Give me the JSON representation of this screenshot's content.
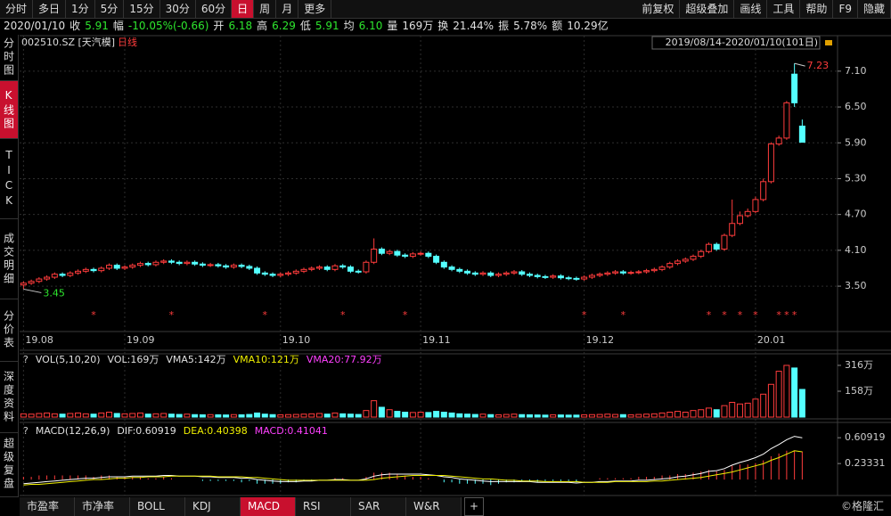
{
  "toolbar": {
    "left": [
      "分时",
      "多日",
      "1分",
      "5分",
      "15分",
      "30分",
      "60分",
      "日",
      "周",
      "月",
      "更多"
    ],
    "active": 7,
    "right": [
      "前复权",
      "超级叠加",
      "画线",
      "工具",
      "帮助",
      "F9",
      "隐藏"
    ]
  },
  "quote": [
    {
      "text": "2020/01/10",
      "color": "#e0e0e0"
    },
    {
      "text": "收",
      "color": "#e0e0e0"
    },
    {
      "text": "5.91",
      "color": "#2ee62e"
    },
    {
      "text": "幅",
      "color": "#e0e0e0"
    },
    {
      "text": "-10.05%(-0.66)",
      "color": "#2ee62e"
    },
    {
      "text": "开",
      "color": "#e0e0e0"
    },
    {
      "text": "6.18",
      "color": "#2ee62e"
    },
    {
      "text": "高",
      "color": "#e0e0e0"
    },
    {
      "text": "6.29",
      "color": "#2ee62e"
    },
    {
      "text": "低",
      "color": "#e0e0e0"
    },
    {
      "text": "5.91",
      "color": "#2ee62e"
    },
    {
      "text": "均",
      "color": "#e0e0e0"
    },
    {
      "text": "6.10",
      "color": "#2ee62e"
    },
    {
      "text": "量",
      "color": "#e0e0e0"
    },
    {
      "text": "169万",
      "color": "#e0e0e0"
    },
    {
      "text": "换",
      "color": "#e0e0e0"
    },
    {
      "text": "21.44%",
      "color": "#e0e0e0"
    },
    {
      "text": "振",
      "color": "#e0e0e0"
    },
    {
      "text": "5.78%",
      "color": "#e0e0e0"
    },
    {
      "text": "额",
      "color": "#e0e0e0"
    },
    {
      "text": "10.29亿",
      "color": "#e0e0e0"
    }
  ],
  "sidebar": {
    "items": [
      "分时图",
      "K线图",
      "TICK",
      "成交明细",
      "分价表",
      "深度资料",
      "超级复盘"
    ],
    "active": 1
  },
  "bottom_tabs": {
    "items": [
      "市盈率",
      "市净率",
      "BOLL",
      "KDJ",
      "MACD",
      "RSI",
      "SAR",
      "W&R"
    ],
    "active": 4
  },
  "watermark": "©格隆汇",
  "chart_data": {
    "type": "candlestick",
    "title": "002510.SZ [天汽模]",
    "subtitle": "日线",
    "range_label": "2019/08/14-2020/01/10(101日)",
    "up_color": "#ff3c3c",
    "down_color": "#54ffff",
    "open": [
      3.52,
      3.55,
      3.58,
      3.62,
      3.65,
      3.7,
      3.68,
      3.72,
      3.75,
      3.78,
      3.76,
      3.8,
      3.85,
      3.8,
      3.82,
      3.85,
      3.88,
      3.86,
      3.9,
      3.92,
      3.9,
      3.88,
      3.9,
      3.87,
      3.85,
      3.86,
      3.84,
      3.82,
      3.85,
      3.83,
      3.8,
      3.72,
      3.7,
      3.68,
      3.7,
      3.72,
      3.75,
      3.78,
      3.8,
      3.82,
      3.78,
      3.84,
      3.82,
      3.75,
      3.74,
      3.9,
      4.12,
      4.05,
      4.08,
      4.02,
      4.0,
      4.04,
      4.05,
      4.0,
      3.9,
      3.82,
      3.78,
      3.75,
      3.72,
      3.7,
      3.72,
      3.68,
      3.7,
      3.72,
      3.74,
      3.7,
      3.68,
      3.66,
      3.65,
      3.67,
      3.64,
      3.63,
      3.62,
      3.65,
      3.68,
      3.7,
      3.72,
      3.74,
      3.72,
      3.73,
      3.74,
      3.76,
      3.78,
      3.82,
      3.88,
      3.92,
      3.95,
      4.0,
      4.08,
      4.2,
      4.12,
      4.35,
      4.55,
      4.68,
      4.75,
      4.95,
      5.25,
      5.88,
      5.98,
      7.05,
      6.18
    ],
    "high": [
      3.58,
      3.61,
      3.65,
      3.68,
      3.73,
      3.73,
      3.75,
      3.78,
      3.81,
      3.81,
      3.83,
      3.88,
      3.88,
      3.85,
      3.88,
      3.91,
      3.91,
      3.93,
      3.95,
      3.95,
      3.93,
      3.93,
      3.93,
      3.9,
      3.89,
      3.89,
      3.87,
      3.88,
      3.88,
      3.86,
      3.83,
      3.75,
      3.73,
      3.73,
      3.75,
      3.78,
      3.81,
      3.83,
      3.85,
      3.85,
      3.87,
      3.87,
      3.85,
      3.78,
      3.93,
      4.3,
      4.15,
      4.11,
      4.11,
      4.05,
      4.07,
      4.08,
      4.08,
      4.03,
      3.93,
      3.85,
      3.81,
      3.78,
      3.75,
      3.75,
      3.75,
      3.73,
      3.75,
      3.77,
      3.77,
      3.73,
      3.71,
      3.69,
      3.7,
      3.7,
      3.67,
      3.66,
      3.68,
      3.71,
      3.73,
      3.75,
      3.77,
      3.77,
      3.76,
      3.77,
      3.79,
      3.81,
      3.85,
      3.91,
      3.95,
      3.98,
      4.03,
      4.11,
      4.23,
      4.23,
      4.38,
      4.95,
      4.75,
      4.8,
      5.0,
      5.3,
      5.91,
      6.02,
      6.6,
      7.23,
      6.29
    ],
    "low": [
      3.45,
      3.52,
      3.55,
      3.59,
      3.62,
      3.65,
      3.65,
      3.69,
      3.72,
      3.73,
      3.73,
      3.77,
      3.77,
      3.77,
      3.79,
      3.82,
      3.83,
      3.83,
      3.87,
      3.87,
      3.85,
      3.85,
      3.84,
      3.82,
      3.82,
      3.81,
      3.79,
      3.79,
      3.8,
      3.77,
      3.69,
      3.67,
      3.65,
      3.65,
      3.67,
      3.69,
      3.72,
      3.75,
      3.77,
      3.75,
      3.75,
      3.79,
      3.72,
      3.71,
      3.71,
      3.87,
      4.02,
      4.02,
      3.99,
      3.97,
      3.97,
      4.01,
      3.97,
      3.87,
      3.79,
      3.75,
      3.72,
      3.69,
      3.67,
      3.67,
      3.65,
      3.65,
      3.67,
      3.69,
      3.67,
      3.65,
      3.63,
      3.62,
      3.62,
      3.61,
      3.6,
      3.59,
      3.59,
      3.62,
      3.65,
      3.67,
      3.69,
      3.69,
      3.69,
      3.7,
      3.71,
      3.73,
      3.75,
      3.79,
      3.85,
      3.89,
      3.92,
      3.97,
      4.05,
      4.09,
      4.09,
      4.32,
      4.52,
      4.65,
      4.72,
      4.92,
      5.22,
      5.85,
      5.95,
      6.5,
      5.91
    ],
    "close": [
      3.55,
      3.58,
      3.62,
      3.65,
      3.7,
      3.68,
      3.72,
      3.75,
      3.78,
      3.76,
      3.8,
      3.85,
      3.8,
      3.82,
      3.85,
      3.88,
      3.86,
      3.9,
      3.92,
      3.9,
      3.88,
      3.9,
      3.87,
      3.85,
      3.86,
      3.84,
      3.82,
      3.85,
      3.83,
      3.8,
      3.72,
      3.7,
      3.68,
      3.7,
      3.72,
      3.75,
      3.78,
      3.8,
      3.82,
      3.78,
      3.84,
      3.82,
      3.75,
      3.74,
      3.9,
      4.12,
      4.05,
      4.08,
      4.02,
      4.0,
      4.04,
      4.05,
      4.0,
      3.9,
      3.82,
      3.78,
      3.75,
      3.72,
      3.7,
      3.72,
      3.68,
      3.7,
      3.72,
      3.74,
      3.7,
      3.68,
      3.66,
      3.65,
      3.67,
      3.64,
      3.63,
      3.62,
      3.65,
      3.68,
      3.7,
      3.72,
      3.74,
      3.72,
      3.73,
      3.74,
      3.76,
      3.78,
      3.82,
      3.88,
      3.92,
      3.95,
      4.0,
      4.08,
      4.2,
      4.12,
      4.35,
      4.55,
      4.68,
      4.75,
      4.95,
      5.25,
      5.88,
      5.98,
      6.57,
      6.57,
      5.91
    ],
    "ylim": [
      2.77,
      7.62
    ],
    "yticks": [
      {
        "value": 3.5,
        "label": "3.50"
      },
      {
        "value": 4.1,
        "label": "4.10"
      },
      {
        "value": 4.7,
        "label": "4.70"
      },
      {
        "value": 5.3,
        "label": "5.30"
      },
      {
        "value": 5.9,
        "label": "5.90"
      },
      {
        "value": 6.5,
        "label": "6.50"
      },
      {
        "value": 7.1,
        "label": "7.10"
      }
    ],
    "xticks": [
      {
        "value": 0,
        "label": "19.08"
      },
      {
        "value": 13,
        "label": "19.09"
      },
      {
        "value": 33,
        "label": "19.10"
      },
      {
        "value": 51,
        "label": "19.11"
      },
      {
        "value": 72,
        "label": "19.12"
      },
      {
        "value": 94,
        "label": "20.01"
      }
    ],
    "high_mark": 7.23,
    "low_mark": 3.45,
    "signal_symbol": "*",
    "signals": [
      9,
      19,
      31,
      41,
      49,
      72,
      77,
      88,
      90,
      92,
      94,
      97,
      98,
      99
    ],
    "volume": {
      "legend": [
        {
          "text": "?",
          "color": "#ccc"
        },
        {
          "text": "VOL(5,10,20)",
          "color": "#e0e0e0"
        },
        {
          "text": "VOL:169万",
          "color": "#e0e0e0"
        },
        {
          "text": "VMA5:142万",
          "color": "#e0e0e0"
        },
        {
          "text": "VMA10:121万",
          "color": "#f0f000"
        },
        {
          "text": "VMA20:77.92万",
          "color": "#ff40ff"
        }
      ],
      "values": [
        20,
        18,
        22,
        25,
        20,
        18,
        22,
        25,
        20,
        18,
        25,
        30,
        22,
        20,
        22,
        25,
        18,
        20,
        22,
        18,
        16,
        18,
        15,
        14,
        15,
        14,
        13,
        15,
        14,
        16,
        25,
        18,
        15,
        14,
        15,
        16,
        18,
        20,
        22,
        18,
        25,
        20,
        18,
        16,
        40,
        100,
        60,
        45,
        35,
        30,
        28,
        30,
        28,
        35,
        30,
        25,
        20,
        18,
        16,
        18,
        15,
        14,
        16,
        18,
        15,
        14,
        13,
        12,
        14,
        13,
        12,
        12,
        14,
        15,
        16,
        18,
        16,
        15,
        14,
        16,
        18,
        20,
        25,
        30,
        35,
        30,
        40,
        45,
        55,
        45,
        70,
        90,
        80,
        85,
        110,
        140,
        200,
        280,
        316,
        300,
        169
      ],
      "ylim": [
        0,
        354
      ],
      "yticks": [
        {
          "value": 158,
          "label": "158万"
        },
        {
          "value": 316,
          "label": "316万"
        }
      ]
    },
    "macd": {
      "legend": [
        {
          "text": "?",
          "color": "#ccc"
        },
        {
          "text": "MACD(12,26,9)",
          "color": "#e0e0e0"
        },
        {
          "text": "DIF:0.60919",
          "color": "#e0e0e0"
        },
        {
          "text": "DEA:0.40398",
          "color": "#f0f000"
        },
        {
          "text": "MACD:0.41041",
          "color": "#ff40ff"
        }
      ],
      "dif": [
        -0.06,
        -0.05,
        -0.04,
        -0.03,
        -0.02,
        -0.01,
        0.0,
        0.01,
        0.02,
        0.02,
        0.03,
        0.04,
        0.04,
        0.04,
        0.05,
        0.05,
        0.05,
        0.05,
        0.06,
        0.06,
        0.05,
        0.05,
        0.05,
        0.04,
        0.04,
        0.03,
        0.03,
        0.03,
        0.02,
        0.02,
        0.0,
        -0.01,
        -0.02,
        -0.03,
        -0.03,
        -0.03,
        -0.02,
        -0.02,
        -0.01,
        -0.01,
        0.0,
        0.0,
        -0.01,
        -0.01,
        0.01,
        0.05,
        0.07,
        0.08,
        0.08,
        0.08,
        0.08,
        0.08,
        0.07,
        0.06,
        0.04,
        0.03,
        0.01,
        0.0,
        -0.01,
        -0.02,
        -0.03,
        -0.03,
        -0.03,
        -0.03,
        -0.03,
        -0.03,
        -0.04,
        -0.04,
        -0.04,
        -0.04,
        -0.04,
        -0.05,
        -0.04,
        -0.04,
        -0.03,
        -0.03,
        -0.02,
        -0.02,
        -0.02,
        -0.01,
        -0.01,
        0.0,
        0.01,
        0.02,
        0.04,
        0.05,
        0.07,
        0.09,
        0.12,
        0.13,
        0.16,
        0.21,
        0.25,
        0.28,
        0.32,
        0.37,
        0.45,
        0.51,
        0.58,
        0.63,
        0.60919
      ],
      "dea": [
        -0.08,
        -0.07,
        -0.07,
        -0.06,
        -0.05,
        -0.04,
        -0.03,
        -0.02,
        -0.01,
        0.0,
        0.0,
        0.01,
        0.02,
        0.02,
        0.03,
        0.03,
        0.04,
        0.04,
        0.04,
        0.05,
        0.05,
        0.05,
        0.05,
        0.05,
        0.05,
        0.04,
        0.04,
        0.04,
        0.04,
        0.03,
        0.03,
        0.02,
        0.01,
        0.0,
        -0.01,
        -0.01,
        -0.01,
        -0.01,
        -0.01,
        -0.01,
        -0.01,
        -0.01,
        -0.01,
        -0.01,
        -0.01,
        0.0,
        0.02,
        0.03,
        0.04,
        0.05,
        0.06,
        0.06,
        0.06,
        0.06,
        0.06,
        0.05,
        0.04,
        0.03,
        0.02,
        0.01,
        0.01,
        0.0,
        -0.01,
        -0.01,
        -0.02,
        -0.02,
        -0.02,
        -0.03,
        -0.03,
        -0.03,
        -0.03,
        -0.03,
        -0.04,
        -0.04,
        -0.04,
        -0.04,
        -0.03,
        -0.03,
        -0.03,
        -0.03,
        -0.03,
        -0.02,
        -0.02,
        -0.01,
        0.0,
        0.01,
        0.02,
        0.03,
        0.05,
        0.07,
        0.09,
        0.11,
        0.14,
        0.17,
        0.2,
        0.23,
        0.28,
        0.32,
        0.37,
        0.42,
        0.40398
      ],
      "values": [
        0.04,
        0.04,
        0.06,
        0.06,
        0.06,
        0.06,
        0.06,
        0.06,
        0.06,
        0.04,
        0.06,
        0.06,
        0.04,
        0.04,
        0.04,
        0.04,
        0.02,
        0.02,
        0.04,
        0.02,
        0,
        0,
        0,
        -0.02,
        -0.02,
        -0.02,
        -0.02,
        -0.02,
        -0.04,
        -0.02,
        -0.06,
        -0.06,
        -0.06,
        -0.06,
        -0.04,
        -0.04,
        -0.02,
        -0.02,
        0,
        0,
        0.02,
        0.02,
        0,
        0,
        0.04,
        0.1,
        0.1,
        0.1,
        0.08,
        0.06,
        0.04,
        0.04,
        0.02,
        0,
        -0.04,
        -0.04,
        -0.06,
        -0.06,
        -0.06,
        -0.06,
        -0.08,
        -0.06,
        -0.04,
        -0.04,
        -0.02,
        -0.02,
        -0.04,
        -0.02,
        -0.02,
        -0.02,
        -0.02,
        -0.04,
        0,
        0,
        0.02,
        0.02,
        0.02,
        0.02,
        0.02,
        0.04,
        0.04,
        0.04,
        0.06,
        0.06,
        0.08,
        0.08,
        0.1,
        0.12,
        0.14,
        0.12,
        0.14,
        0.2,
        0.22,
        0.22,
        0.24,
        0.28,
        0.34,
        0.38,
        0.42,
        0.42,
        0.41041
      ],
      "ylim": [
        -0.18,
        0.78
      ],
      "yticks": [
        0.23331,
        0.60919
      ]
    }
  }
}
